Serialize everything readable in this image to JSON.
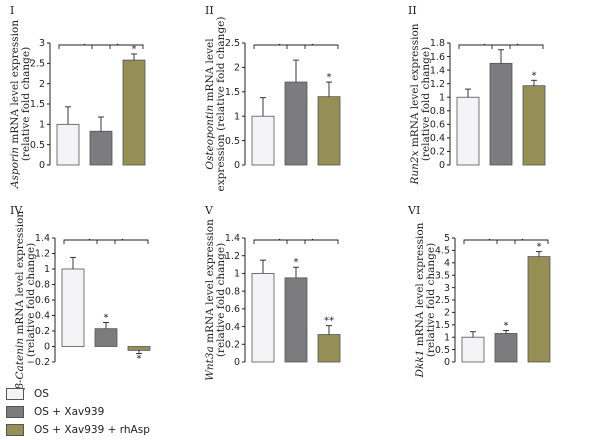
{
  "colors": {
    "os": "#f4f4f6",
    "xav": "#7c7c7e",
    "rh": "#958e55",
    "axis": "#222222",
    "bar_stroke": "#555555"
  },
  "legend": [
    {
      "label": "OS",
      "color": "#f4f4f6"
    },
    {
      "label": "OS + Xav939",
      "color": "#7c7c7e"
    },
    {
      "label": "OS + Xav939 + rhAsp",
      "color": "#958e55"
    }
  ],
  "chart_data": [
    {
      "type": "bar",
      "panel": "I",
      "ylabel_parts": [
        {
          "text": "Asporin",
          "italic": true
        },
        {
          "text": " mRNA level expression",
          "italic": false
        }
      ],
      "ylabel2": "(relative fold change)",
      "ylim": [
        0,
        3
      ],
      "yticks": [
        "0",
        "0.5",
        "1",
        "1.5",
        "2",
        "2.5",
        "3"
      ],
      "series": [
        {
          "values": [
            1.0,
            0.83,
            2.58
          ],
          "errors": [
            0.43,
            0.35,
            0.15
          ]
        }
      ],
      "stars": [
        "",
        "",
        "*"
      ],
      "brackets": [
        [
          0,
          1
        ],
        [
          1,
          2
        ]
      ]
    },
    {
      "type": "bar",
      "panel": "II",
      "ylabel_parts": [
        {
          "text": "Osteopontin",
          "italic": true
        },
        {
          "text": " mRNA level",
          "italic": false
        }
      ],
      "ylabel2": "expression (relative fold change)",
      "ylim": [
        0,
        2.5
      ],
      "yticks": [
        "0",
        "0.5",
        "1",
        "1.5",
        "2",
        "2.5"
      ],
      "series": [
        {
          "values": [
            1.0,
            1.7,
            1.4
          ],
          "errors": [
            0.38,
            0.45,
            0.3
          ]
        }
      ],
      "stars": [
        "",
        "",
        "*"
      ],
      "brackets": [
        [
          0,
          1
        ],
        [
          1,
          2
        ]
      ]
    },
    {
      "type": "bar",
      "panel": "II",
      "ylabel_parts": [
        {
          "text": "Run2x",
          "italic": true
        },
        {
          "text": " mRNA level expression",
          "italic": false
        }
      ],
      "ylabel2": "(relative fold change)",
      "ylim": [
        0,
        1.8
      ],
      "yticks": [
        "0",
        "0.2",
        "0.4",
        "0.6",
        "0.8",
        "1",
        "1.2",
        "1.4",
        "1.6",
        "1.8"
      ],
      "series": [
        {
          "values": [
            1.0,
            1.5,
            1.17
          ],
          "errors": [
            0.12,
            0.2,
            0.08
          ]
        }
      ],
      "stars": [
        "",
        "",
        "*"
      ],
      "brackets": [
        [
          0,
          1
        ],
        [
          1,
          2
        ]
      ]
    },
    {
      "type": "bar",
      "panel": "IV",
      "ylabel_parts": [
        {
          "text": "β-Catenin",
          "italic": true
        },
        {
          "text": " mRNA level expression",
          "italic": false
        }
      ],
      "ylabel2": "(relative fold change)",
      "ylim": [
        -0.2,
        1.4
      ],
      "yticks": [
        "−0.2",
        "0",
        "0.2",
        "0.4",
        "0.6",
        "0.8",
        "1",
        "1.2",
        "1.4"
      ],
      "series": [
        {
          "values": [
            1.0,
            0.23,
            -0.05
          ],
          "errors": [
            0.15,
            0.08,
            0.04
          ]
        }
      ],
      "stars": [
        "",
        "*",
        "*"
      ],
      "brackets": [
        [
          0,
          1
        ],
        [
          1,
          2
        ]
      ]
    },
    {
      "type": "bar",
      "panel": "V",
      "ylabel_parts": [
        {
          "text": "Wnt3a",
          "italic": true
        },
        {
          "text": " mRNA level expression",
          "italic": false
        }
      ],
      "ylabel2": "(relative fold change)",
      "ylim": [
        0,
        1.4
      ],
      "yticks": [
        "0",
        "0.2",
        "0.4",
        "0.6",
        "0.8",
        "1",
        "1.2",
        "1.4"
      ],
      "series": [
        {
          "values": [
            1.0,
            0.95,
            0.31
          ],
          "errors": [
            0.15,
            0.12,
            0.1
          ]
        }
      ],
      "stars": [
        "",
        "*",
        "**"
      ],
      "brackets": [
        [
          0,
          1
        ],
        [
          1,
          2
        ]
      ]
    },
    {
      "type": "bar",
      "panel": "VI",
      "ylabel_parts": [
        {
          "text": "Dkk1",
          "italic": true
        },
        {
          "text": " mRNA level expression",
          "italic": false
        }
      ],
      "ylabel2": "(relative fold change)",
      "ylim": [
        0,
        5
      ],
      "yticks": [
        "0",
        "0.5",
        "1",
        "1.5",
        "2",
        "2.5",
        "3",
        "3.5",
        "4",
        "4.5",
        "5"
      ],
      "series": [
        {
          "values": [
            1.0,
            1.15,
            4.25
          ],
          "errors": [
            0.22,
            0.12,
            0.2
          ]
        }
      ],
      "stars": [
        "",
        "*",
        "*"
      ],
      "brackets": [
        [
          0,
          1
        ],
        [
          1,
          2
        ]
      ]
    }
  ]
}
